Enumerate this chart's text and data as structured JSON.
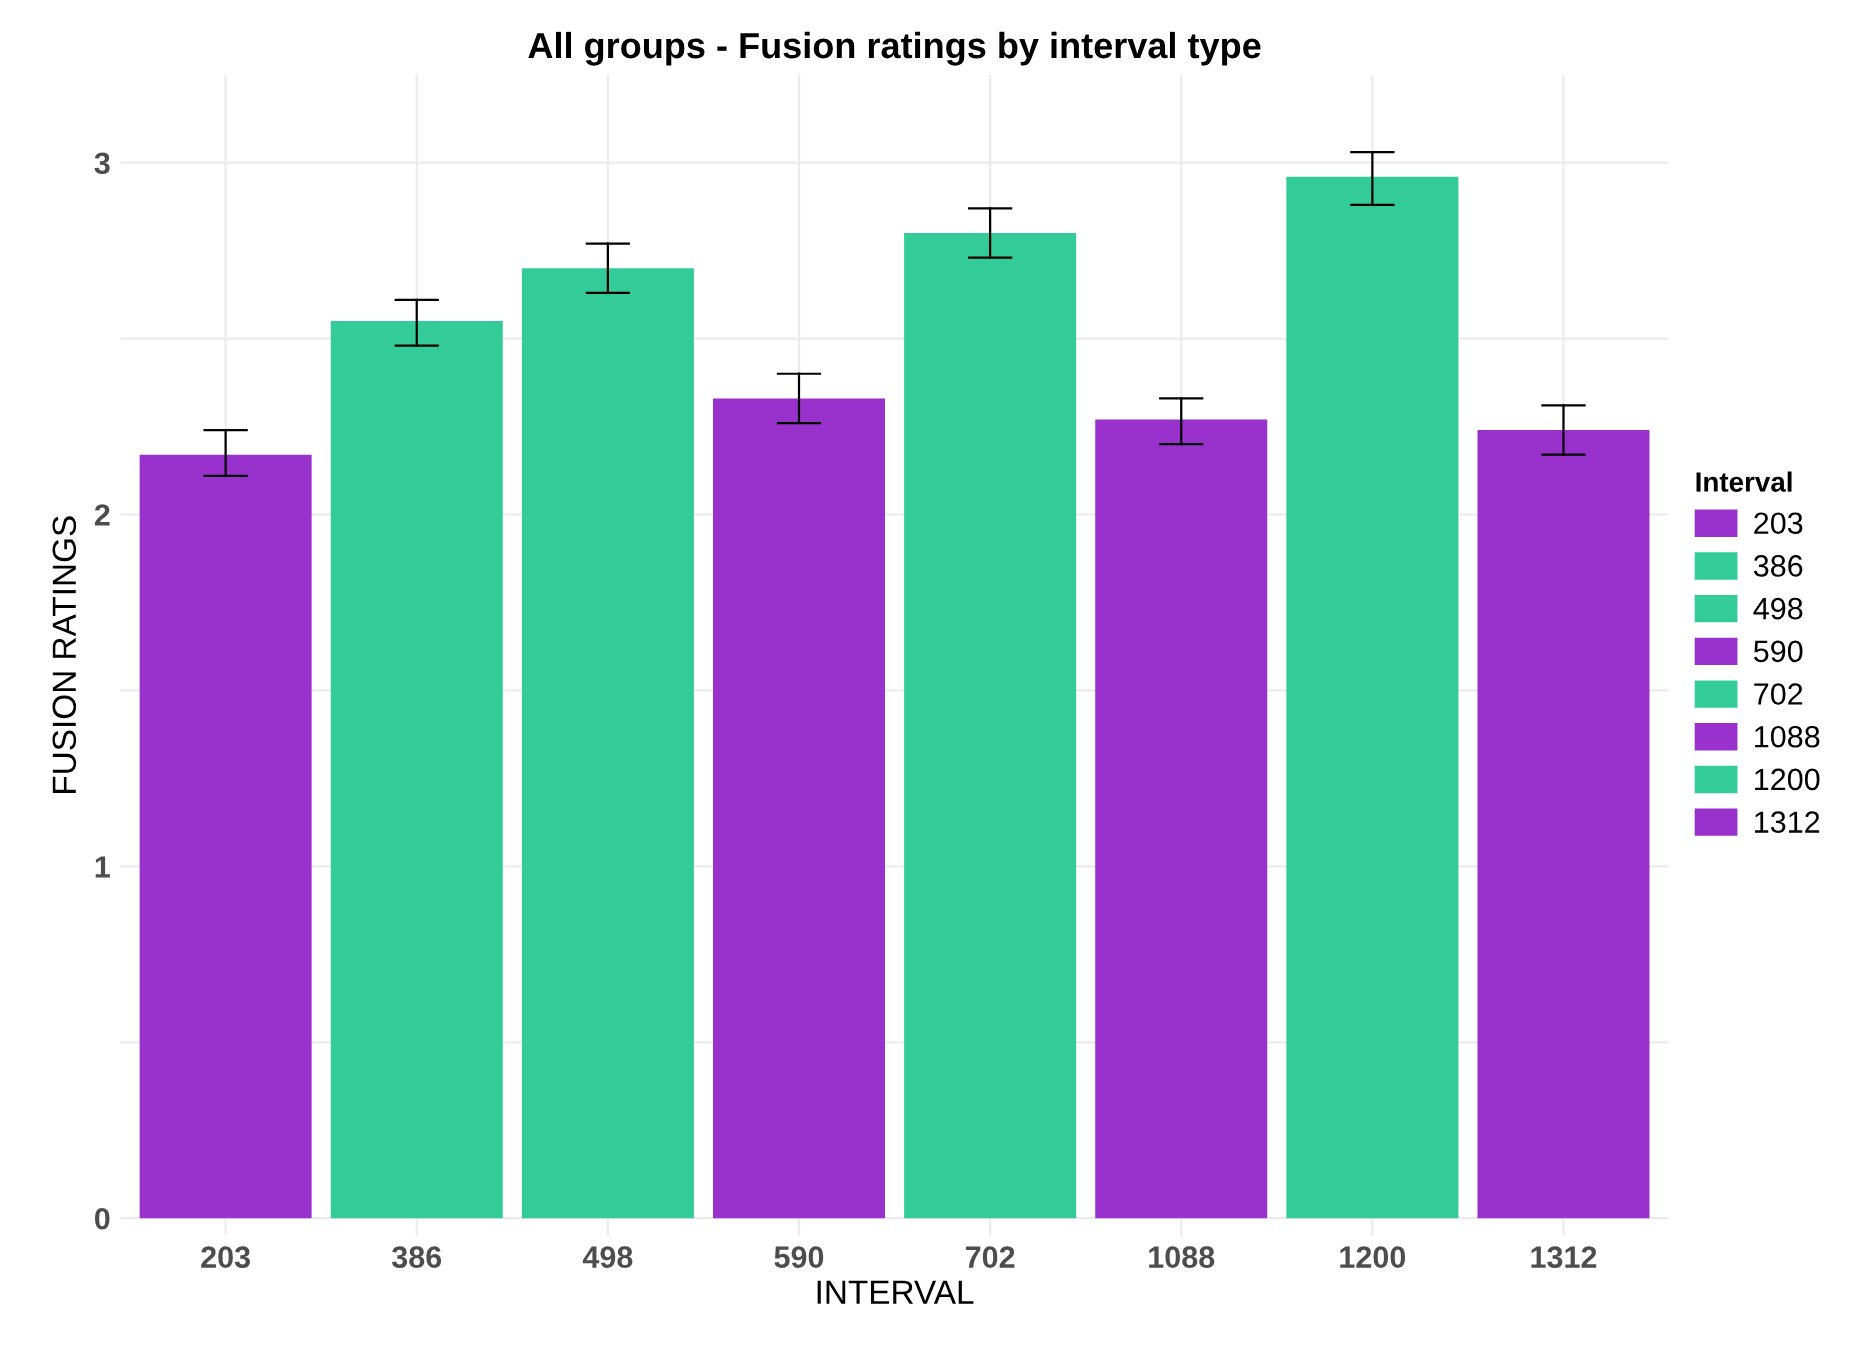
{
  "chart_data": {
    "type": "bar",
    "title": "All groups - Fusion ratings by interval type",
    "xlabel": "INTERVAL",
    "ylabel": "FUSION RATINGS",
    "legend_title": "Interval",
    "categories": [
      "203",
      "386",
      "498",
      "590",
      "702",
      "1088",
      "1200",
      "1312"
    ],
    "series": [
      {
        "name": "203",
        "color": "#9932cc",
        "values": [
          2.17,
          null,
          null,
          null,
          null,
          null,
          null,
          null
        ],
        "errors": [
          [
            2.11,
            2.24
          ],
          null,
          null,
          null,
          null,
          null,
          null,
          null
        ]
      },
      {
        "name": "386",
        "color": "#33cc99",
        "values": [
          null,
          2.55,
          null,
          null,
          null,
          null,
          null,
          null
        ],
        "errors": [
          null,
          [
            2.48,
            2.61
          ],
          null,
          null,
          null,
          null,
          null,
          null
        ]
      },
      {
        "name": "498",
        "color": "#33cc99",
        "values": [
          null,
          null,
          2.7,
          null,
          null,
          null,
          null,
          null
        ],
        "errors": [
          null,
          null,
          [
            2.63,
            2.77
          ],
          null,
          null,
          null,
          null,
          null
        ]
      },
      {
        "name": "590",
        "color": "#9932cc",
        "values": [
          null,
          null,
          null,
          2.33,
          null,
          null,
          null,
          null
        ],
        "errors": [
          null,
          null,
          null,
          [
            2.26,
            2.4
          ],
          null,
          null,
          null,
          null
        ]
      },
      {
        "name": "702",
        "color": "#33cc99",
        "values": [
          null,
          null,
          null,
          null,
          2.8,
          null,
          null,
          null
        ],
        "errors": [
          null,
          null,
          null,
          null,
          [
            2.73,
            2.87
          ],
          null,
          null,
          null
        ]
      },
      {
        "name": "1088",
        "color": "#9932cc",
        "values": [
          null,
          null,
          null,
          null,
          null,
          2.27,
          null,
          null
        ],
        "errors": [
          null,
          null,
          null,
          null,
          null,
          [
            2.2,
            2.33
          ],
          null,
          null
        ]
      },
      {
        "name": "1200",
        "color": "#33cc99",
        "values": [
          null,
          null,
          null,
          null,
          null,
          null,
          2.96,
          null
        ],
        "errors": [
          null,
          null,
          null,
          null,
          null,
          null,
          [
            2.88,
            3.03
          ],
          null
        ]
      },
      {
        "name": "1312",
        "color": "#9932cc",
        "values": [
          null,
          null,
          null,
          null,
          null,
          null,
          null,
          2.24
        ],
        "errors": [
          null,
          null,
          null,
          null,
          null,
          null,
          null,
          [
            2.17,
            2.31
          ]
        ]
      }
    ],
    "ylim": [
      -0.05,
      3.25
    ],
    "yticks": [
      0,
      {
        "value": 0.5,
        "label": null
      },
      1,
      {
        "value": 1.5,
        "label": null
      },
      2,
      {
        "value": 2.5,
        "label": null
      },
      3
    ],
    "grid": true,
    "legend": "right"
  }
}
